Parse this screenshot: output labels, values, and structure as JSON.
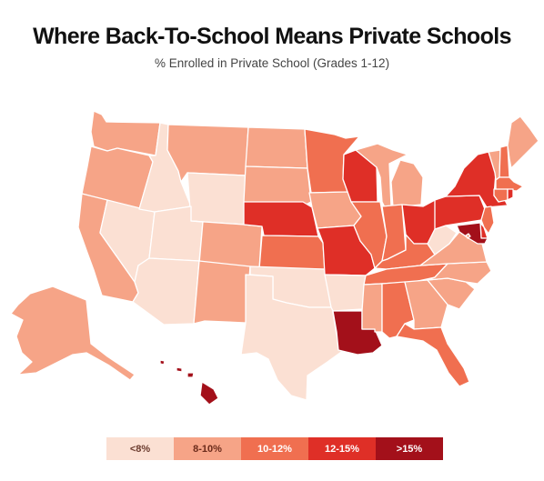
{
  "title": "Where Back-To-School Means Private Schools",
  "subtitle": "% Enrolled in Private School (Grades 1-12)",
  "colors": {
    "c1": "#fbe0d3",
    "c2": "#f6a487",
    "c3": "#f06f50",
    "c4": "#df2f27",
    "c5": "#a3101a",
    "border": "#ffffff"
  },
  "legend": [
    {
      "label": "<8%",
      "color": "c1",
      "text": "#6b3b2e"
    },
    {
      "label": "8-10%",
      "color": "c2",
      "text": "#6b2b1b"
    },
    {
      "label": "10-12%",
      "color": "c3",
      "text": "#ffffff"
    },
    {
      "label": "12-15%",
      "color": "c4",
      "text": "#ffffff"
    },
    {
      "label": ">15%",
      "color": "c5",
      "text": "#ffffff"
    }
  ],
  "states": {
    "WA": "c2",
    "OR": "c2",
    "CA": "c2",
    "ID": "c1",
    "NV": "c1",
    "MT": "c2",
    "WY": "c1",
    "UT": "c1",
    "AZ": "c1",
    "CO": "c2",
    "NM": "c2",
    "ND": "c2",
    "SD": "c2",
    "NE": "c4",
    "KS": "c3",
    "OK": "c1",
    "TX": "c1",
    "MN": "c3",
    "IA": "c2",
    "MO": "c4",
    "AR": "c1",
    "LA": "c5",
    "WI": "c4",
    "IL": "c3",
    "MI": "c2",
    "IN": "c3",
    "OH": "c4",
    "KY": "c3",
    "TN": "c3",
    "MS": "c2",
    "AL": "c3",
    "GA": "c2",
    "FL": "c3",
    "SC": "c2",
    "NC": "c2",
    "VA": "c2",
    "WV": "c1",
    "PA": "c4",
    "NY": "c4",
    "VT": "c2",
    "NH": "c3",
    "ME": "c2",
    "MA": "c3",
    "CT": "c3",
    "RI": "c4",
    "NJ": "c3",
    "DE": "c4",
    "MD": "c5",
    "DC": "c2",
    "AK": "c2",
    "HI": "c5"
  }
}
